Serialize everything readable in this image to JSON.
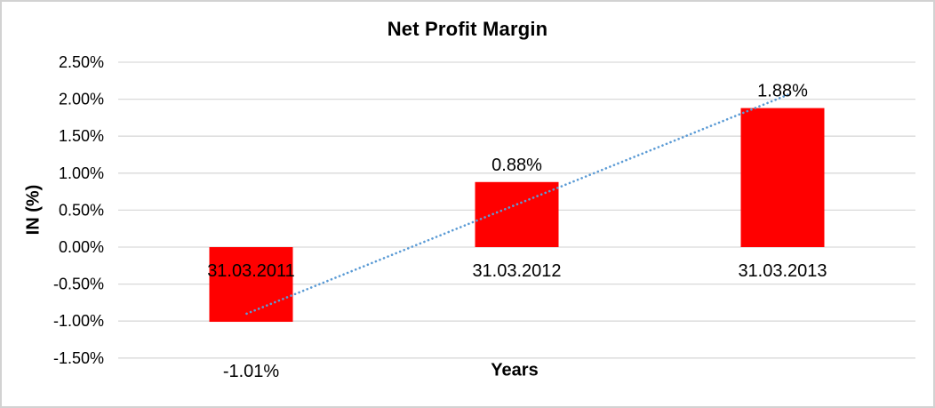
{
  "window": {
    "background": "#ffffff",
    "frame_border_color": "#d2d2d2"
  },
  "chart_data": {
    "type": "bar",
    "title": "Net Profit Margin",
    "xlabel": "Years",
    "ylabel": "IN (%)",
    "categories": [
      "31.03.2011",
      "31.03.2012",
      "31.03.2013"
    ],
    "series": [
      {
        "name": "Net Profit Margin",
        "values": [
          -1.01,
          0.88,
          1.88
        ]
      }
    ],
    "data_labels": [
      "-1.01%",
      "0.88%",
      "1.88%"
    ],
    "y_ticks": [
      {
        "value": 2.5,
        "label": "2.50%"
      },
      {
        "value": 2.0,
        "label": "2.00%"
      },
      {
        "value": 1.5,
        "label": "1.50%"
      },
      {
        "value": 1.0,
        "label": "1.00%"
      },
      {
        "value": 0.5,
        "label": "0.50%"
      },
      {
        "value": 0.0,
        "label": "0.00%"
      },
      {
        "value": -0.5,
        "label": "-0.50%"
      },
      {
        "value": -1.0,
        "label": "-1.00%"
      },
      {
        "value": -1.5,
        "label": "-1.50%"
      }
    ],
    "ylim": [
      -1.5,
      2.5
    ],
    "grid": true,
    "legend": "none",
    "trendline": {
      "type": "linear",
      "style": "dotted",
      "start_value": -0.9,
      "end_value": 2.06
    },
    "colors": {
      "bar": "#ff0000",
      "trendline": "#5b9bd5",
      "gridline": "#d9d9d9",
      "text": "#000000"
    }
  }
}
